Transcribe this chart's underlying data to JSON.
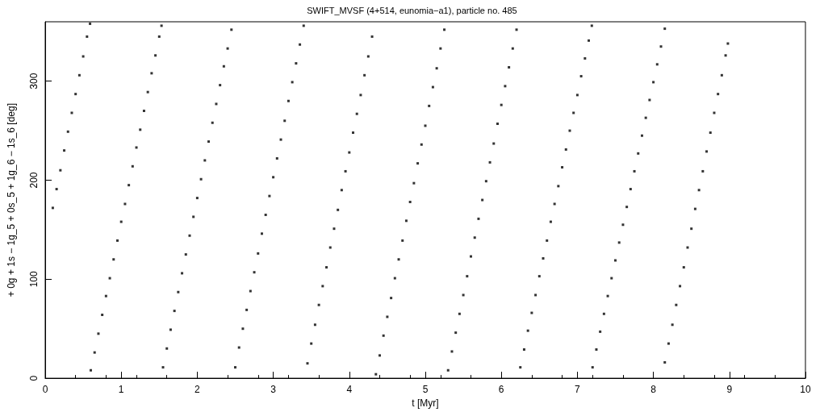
{
  "chart_data": {
    "type": "scatter",
    "title": "SWIFT_MVSF (4+514, eunomia−a1), particle no. 485",
    "xlabel": "t [Myr]",
    "ylabel": "+ 0g + 1s − 1g_5 + 0s_5 + 1g_6 − 1s_6 [deg]",
    "x": [
      0.1,
      0.15,
      0.2,
      0.25,
      0.3,
      0.35,
      0.4,
      0.45,
      0.5,
      0.55,
      0.59,
      0.6,
      0.65,
      0.7,
      0.75,
      0.8,
      0.85,
      0.9,
      0.95,
      1.0,
      1.05,
      1.1,
      1.15,
      1.2,
      1.25,
      1.3,
      1.35,
      1.4,
      1.45,
      1.5,
      1.53,
      1.55,
      1.6,
      1.65,
      1.7,
      1.75,
      1.8,
      1.85,
      1.9,
      1.95,
      2.0,
      2.05,
      2.1,
      2.15,
      2.2,
      2.25,
      2.3,
      2.35,
      2.4,
      2.45,
      2.5,
      2.55,
      2.6,
      2.65,
      2.7,
      2.75,
      2.8,
      2.85,
      2.9,
      2.95,
      3.0,
      3.05,
      3.1,
      3.15,
      3.2,
      3.25,
      3.3,
      3.35,
      3.4,
      3.45,
      3.5,
      3.55,
      3.6,
      3.65,
      3.7,
      3.75,
      3.8,
      3.85,
      3.9,
      3.95,
      4.0,
      4.05,
      4.1,
      4.15,
      4.2,
      4.25,
      4.3,
      4.35,
      4.4,
      4.45,
      4.5,
      4.55,
      4.6,
      4.65,
      4.7,
      4.75,
      4.8,
      4.85,
      4.9,
      4.95,
      5.0,
      5.05,
      5.1,
      5.15,
      5.2,
      5.25,
      5.3,
      5.35,
      5.4,
      5.45,
      5.5,
      5.55,
      5.6,
      5.65,
      5.7,
      5.75,
      5.8,
      5.85,
      5.9,
      5.95,
      6.0,
      6.05,
      6.1,
      6.15,
      6.2,
      6.25,
      6.3,
      6.35,
      6.4,
      6.45,
      6.5,
      6.55,
      6.6,
      6.65,
      6.7,
      6.75,
      6.8,
      6.85,
      6.9,
      6.95,
      7.0,
      7.05,
      7.1,
      7.15,
      7.19,
      7.2,
      7.25,
      7.3,
      7.35,
      7.4,
      7.45,
      7.5,
      7.55,
      7.6,
      7.65,
      7.7,
      7.75,
      7.8,
      7.85,
      7.9,
      7.95,
      8.0,
      8.05,
      8.1,
      8.15,
      8.15,
      8.2,
      8.25,
      8.3,
      8.35,
      8.4,
      8.45,
      8.5,
      8.55,
      8.6,
      8.65,
      8.7,
      8.75,
      8.8,
      8.85,
      8.9,
      8.95,
      8.98
    ],
    "values": [
      172,
      191,
      210,
      230,
      249,
      268,
      287,
      306,
      325,
      345,
      358,
      8,
      26,
      45,
      64,
      83,
      101,
      120,
      139,
      158,
      176,
      195,
      214,
      233,
      251,
      270,
      289,
      308,
      326,
      345,
      356,
      11,
      30,
      49,
      68,
      87,
      106,
      125,
      144,
      163,
      182,
      201,
      220,
      239,
      258,
      277,
      296,
      315,
      333,
      352,
      11,
      31,
      50,
      69,
      88,
      107,
      126,
      146,
      165,
      184,
      203,
      222,
      241,
      260,
      280,
      299,
      318,
      337,
      356,
      15,
      35,
      54,
      74,
      93,
      112,
      132,
      151,
      170,
      190,
      209,
      228,
      248,
      267,
      286,
      306,
      325,
      345,
      4,
      23,
      43,
      62,
      81,
      101,
      120,
      139,
      159,
      178,
      197,
      217,
      236,
      255,
      275,
      294,
      313,
      333,
      352,
      8,
      27,
      46,
      65,
      84,
      103,
      123,
      142,
      161,
      180,
      199,
      218,
      237,
      257,
      276,
      295,
      314,
      333,
      352,
      11,
      29,
      48,
      66,
      84,
      103,
      121,
      139,
      158,
      176,
      194,
      213,
      231,
      250,
      268,
      286,
      305,
      323,
      341,
      356,
      11,
      29,
      47,
      65,
      83,
      101,
      119,
      137,
      155,
      173,
      191,
      209,
      227,
      245,
      263,
      281,
      299,
      317,
      335,
      353,
      16,
      35,
      54,
      74,
      93,
      112,
      132,
      151,
      171,
      190,
      209,
      229,
      248,
      268,
      287,
      306,
      326,
      338
    ],
    "color": "#000000",
    "marker": "square",
    "xlim": [
      0,
      10
    ],
    "xticks": [
      0,
      1,
      2,
      3,
      4,
      5,
      6,
      7,
      8,
      9,
      10
    ],
    "ylim": [
      0,
      360
    ],
    "yticks": [
      0,
      100,
      200,
      300
    ],
    "grid": false
  }
}
